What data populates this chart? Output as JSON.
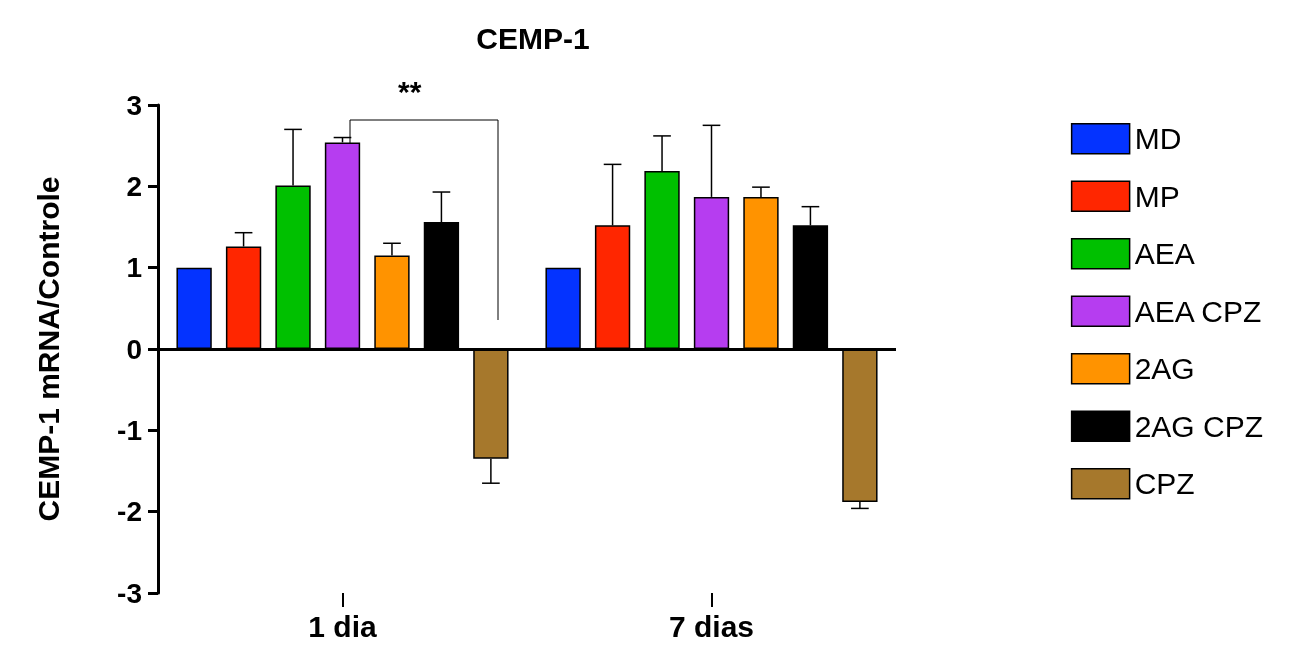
{
  "chart_data": {
    "type": "bar",
    "title": "CEMP-1",
    "ylabel": "CEMP-1 mRNA/Controle",
    "categories": [
      "1 dia",
      "7 dias"
    ],
    "series": [
      {
        "name": "MD",
        "color": "#0433ff",
        "values": [
          1.0,
          1.0
        ]
      },
      {
        "name": "MP",
        "color": "#ff2600",
        "values": [
          1.26,
          1.52
        ],
        "errors": [
          [
            1.26,
            1.43
          ],
          [
            1.52,
            2.27
          ]
        ]
      },
      {
        "name": "AEA",
        "color": "#00c000",
        "values": [
          2.01,
          2.19
        ],
        "errors": [
          [
            2.01,
            2.7
          ],
          [
            2.19,
            2.62
          ]
        ]
      },
      {
        "name": "AEA CPZ",
        "color": "#b63df0",
        "values": [
          2.54,
          1.87
        ],
        "errors": [
          [
            2.54,
            2.6
          ],
          [
            1.87,
            2.75
          ]
        ]
      },
      {
        "name": "2AG",
        "color": "#ff9300",
        "values": [
          1.15,
          1.87
        ],
        "errors": [
          [
            1.15,
            1.3
          ],
          [
            1.87,
            1.99
          ]
        ]
      },
      {
        "name": "2AG CPZ",
        "color": "#000000",
        "values": [
          1.56,
          1.52
        ],
        "errors": [
          [
            1.56,
            1.93
          ],
          [
            1.52,
            1.75
          ]
        ]
      },
      {
        "name": "CPZ",
        "color": "#a6782c",
        "values": [
          -1.35,
          -1.88
        ],
        "errors": [
          [
            -1.65,
            -1.35
          ],
          [
            -1.96,
            -1.88
          ]
        ]
      }
    ],
    "ref_lines": [
      {
        "axis": "y",
        "value": 0,
        "color": "#000000"
      }
    ],
    "ylim": [
      -3,
      3
    ],
    "yticks": [
      -3,
      -2,
      -1,
      0,
      1,
      2,
      3
    ],
    "grid": false,
    "legend": "right",
    "annotations": [
      "**"
    ]
  }
}
